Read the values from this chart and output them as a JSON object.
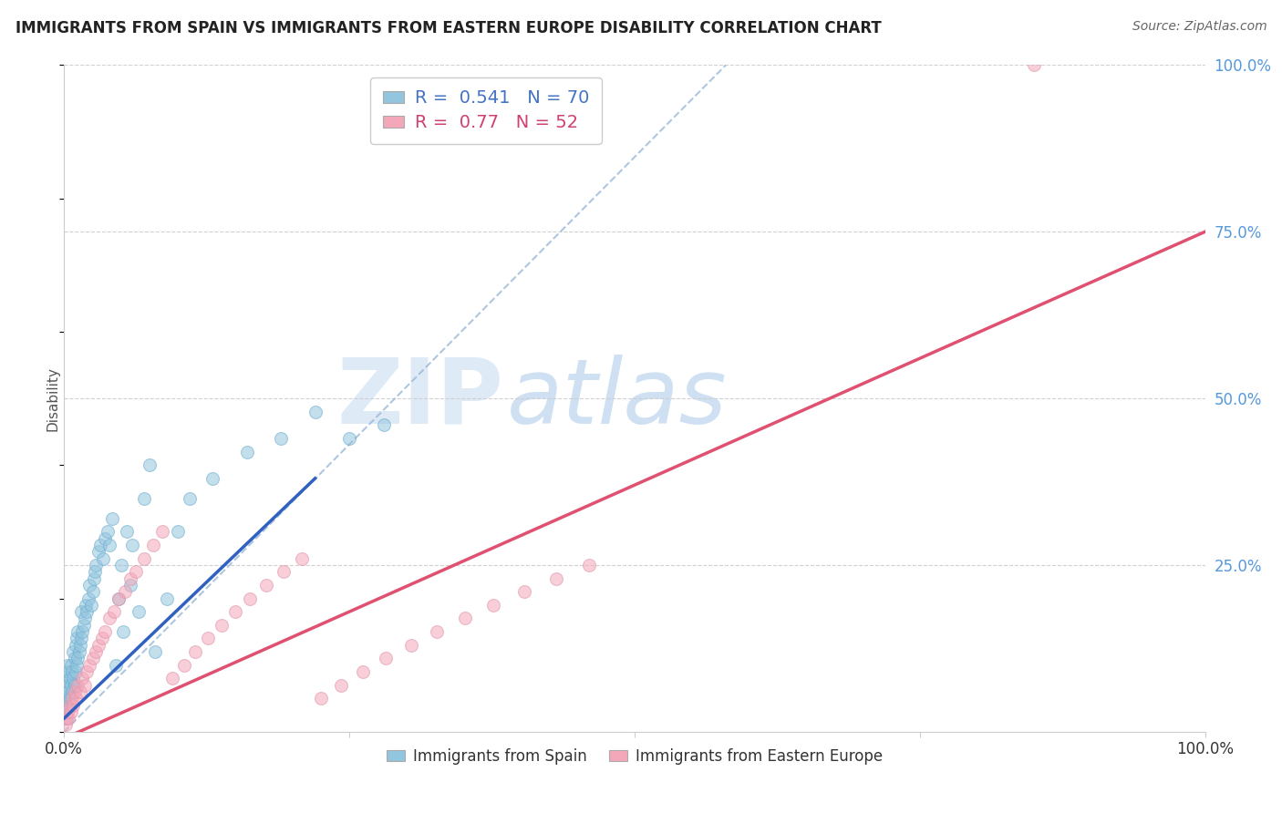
{
  "title": "IMMIGRANTS FROM SPAIN VS IMMIGRANTS FROM EASTERN EUROPE DISABILITY CORRELATION CHART",
  "source": "Source: ZipAtlas.com",
  "ylabel": "Disability",
  "xlim": [
    0,
    1.0
  ],
  "ylim": [
    0,
    1.0
  ],
  "blue_R": 0.541,
  "blue_N": 70,
  "pink_R": 0.77,
  "pink_N": 52,
  "blue_color": "#92c5de",
  "pink_color": "#f4a7b9",
  "blue_line_color": "#3060c0",
  "pink_line_color": "#e05070",
  "ref_line_color": "#9ab8d8",
  "legend_label_blue": "Immigrants from Spain",
  "legend_label_pink": "Immigrants from Eastern Europe",
  "watermark_zip": "ZIP",
  "watermark_atlas": "atlas",
  "blue_scatter_x": [
    0.001,
    0.001,
    0.001,
    0.002,
    0.002,
    0.002,
    0.003,
    0.003,
    0.003,
    0.004,
    0.004,
    0.005,
    0.005,
    0.006,
    0.006,
    0.007,
    0.007,
    0.008,
    0.008,
    0.009,
    0.009,
    0.01,
    0.01,
    0.011,
    0.011,
    0.012,
    0.012,
    0.013,
    0.014,
    0.015,
    0.015,
    0.016,
    0.017,
    0.018,
    0.019,
    0.02,
    0.021,
    0.022,
    0.024,
    0.025,
    0.026,
    0.027,
    0.028,
    0.03,
    0.032,
    0.034,
    0.036,
    0.038,
    0.04,
    0.042,
    0.045,
    0.048,
    0.05,
    0.052,
    0.055,
    0.058,
    0.06,
    0.065,
    0.07,
    0.075,
    0.08,
    0.09,
    0.1,
    0.11,
    0.13,
    0.16,
    0.19,
    0.22,
    0.25,
    0.28
  ],
  "blue_scatter_y": [
    0.02,
    0.03,
    0.05,
    0.04,
    0.06,
    0.08,
    0.05,
    0.07,
    0.1,
    0.06,
    0.09,
    0.05,
    0.08,
    0.07,
    0.1,
    0.06,
    0.09,
    0.08,
    0.12,
    0.07,
    0.11,
    0.09,
    0.13,
    0.1,
    0.14,
    0.11,
    0.15,
    0.12,
    0.13,
    0.14,
    0.18,
    0.15,
    0.16,
    0.17,
    0.19,
    0.18,
    0.2,
    0.22,
    0.19,
    0.21,
    0.23,
    0.24,
    0.25,
    0.27,
    0.28,
    0.26,
    0.29,
    0.3,
    0.28,
    0.32,
    0.1,
    0.2,
    0.25,
    0.15,
    0.3,
    0.22,
    0.28,
    0.18,
    0.35,
    0.4,
    0.12,
    0.2,
    0.3,
    0.35,
    0.38,
    0.42,
    0.44,
    0.48,
    0.44,
    0.46
  ],
  "pink_scatter_x": [
    0.001,
    0.002,
    0.003,
    0.004,
    0.005,
    0.006,
    0.007,
    0.008,
    0.009,
    0.01,
    0.012,
    0.014,
    0.016,
    0.018,
    0.02,
    0.022,
    0.025,
    0.028,
    0.03,
    0.033,
    0.036,
    0.04,
    0.044,
    0.048,
    0.053,
    0.058,
    0.063,
    0.07,
    0.078,
    0.086,
    0.095,
    0.105,
    0.115,
    0.126,
    0.138,
    0.15,
    0.163,
    0.177,
    0.192,
    0.208,
    0.225,
    0.243,
    0.262,
    0.282,
    0.304,
    0.327,
    0.351,
    0.376,
    0.403,
    0.431,
    0.46,
    0.85
  ],
  "pink_scatter_y": [
    0.01,
    0.02,
    0.03,
    0.02,
    0.04,
    0.03,
    0.05,
    0.04,
    0.06,
    0.05,
    0.07,
    0.06,
    0.08,
    0.07,
    0.09,
    0.1,
    0.11,
    0.12,
    0.13,
    0.14,
    0.15,
    0.17,
    0.18,
    0.2,
    0.21,
    0.23,
    0.24,
    0.26,
    0.28,
    0.3,
    0.08,
    0.1,
    0.12,
    0.14,
    0.16,
    0.18,
    0.2,
    0.22,
    0.24,
    0.26,
    0.05,
    0.07,
    0.09,
    0.11,
    0.13,
    0.15,
    0.17,
    0.19,
    0.21,
    0.23,
    0.25,
    1.0
  ],
  "grid_color": "#cccccc",
  "bg_color": "#ffffff",
  "pink_line_x0": 0.0,
  "pink_line_y0": -0.01,
  "pink_line_x1": 1.0,
  "pink_line_y1": 0.75,
  "blue_line_x0": 0.0,
  "blue_line_y0": 0.02,
  "blue_line_x1": 0.22,
  "blue_line_y1": 0.38
}
